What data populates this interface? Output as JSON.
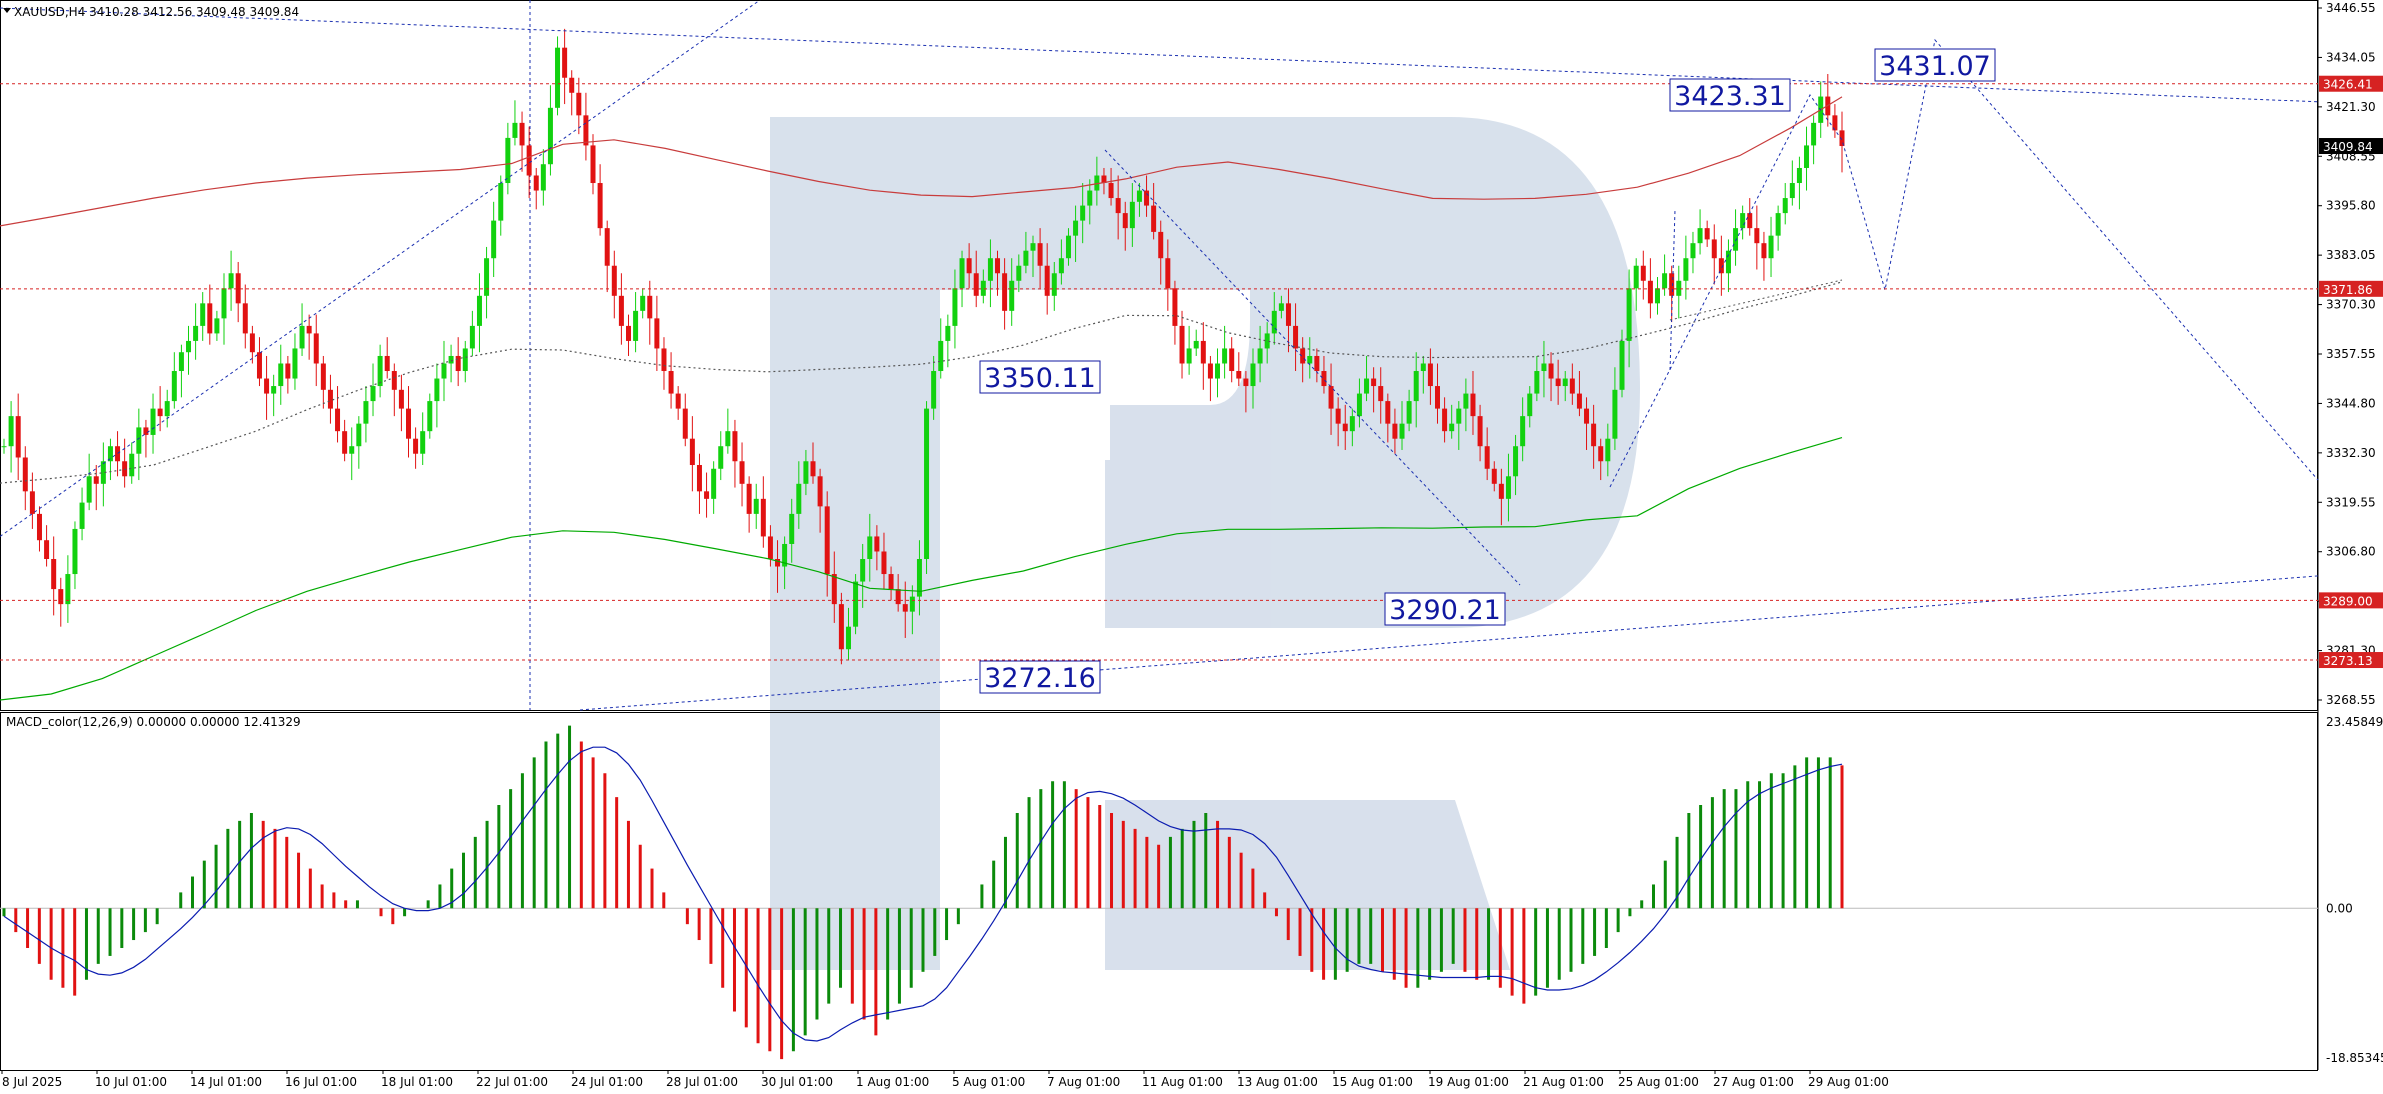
{
  "chart_data": [
    {
      "type": "candlestick",
      "panel": "price",
      "title": "XAUUSD,H4",
      "ohlc_header": [
        "3410.28",
        "3412.56",
        "3409.48",
        "3409.84"
      ],
      "ylim": [
        3262.5,
        3446.55
      ],
      "y_ticks": [
        "3446.55",
        "3434.05",
        "3421.30",
        "3408.55",
        "3395.80",
        "3383.05",
        "3370.30",
        "3357.55",
        "3344.80",
        "3332.30",
        "3319.55",
        "3306.80",
        "3294.05",
        "3281.30",
        "3268.55"
      ],
      "x_ticks": [
        "8 Jul 2025",
        "10 Jul 01:00",
        "14 Jul 01:00",
        "16 Jul 01:00",
        "18 Jul 01:00",
        "22 Jul 01:00",
        "24 Jul 01:00",
        "28 Jul 01:00",
        "30 Jul 01:00",
        "1 Aug 01:00",
        "5 Aug 01:00",
        "7 Aug 01:00",
        "11 Aug 01:00",
        "13 Aug 01:00",
        "15 Aug 01:00",
        "19 Aug 01:00",
        "21 Aug 01:00",
        "25 Aug 01:00",
        "27 Aug 01:00",
        "29 Aug 01:00"
      ],
      "bars_close": [
        3330,
        3338,
        3327,
        3318,
        3312,
        3305,
        3300,
        3292,
        3288,
        3296,
        3308,
        3315,
        3322,
        3320,
        3326,
        3330,
        3326,
        3322,
        3328,
        3335,
        3333,
        3340,
        3338,
        3342,
        3350,
        3355,
        3358,
        3362,
        3368,
        3360,
        3364,
        3372,
        3376,
        3368,
        3360,
        3355,
        3348,
        3344,
        3346,
        3352,
        3348,
        3356,
        3362,
        3360,
        3352,
        3345,
        3340,
        3334,
        3328,
        3330,
        3336,
        3342,
        3346,
        3354,
        3350,
        3345,
        3340,
        3332,
        3328,
        3334,
        3342,
        3348,
        3352,
        3354,
        3350,
        3356,
        3362,
        3370,
        3380,
        3390,
        3400,
        3412,
        3416,
        3410,
        3402,
        3398,
        3405,
        3420,
        3436,
        3428,
        3424,
        3418,
        3410,
        3400,
        3388,
        3378,
        3370,
        3362,
        3358,
        3366,
        3370,
        3364,
        3356,
        3350,
        3344,
        3340,
        3332,
        3325,
        3318,
        3316,
        3324,
        3330,
        3334,
        3326,
        3320,
        3312,
        3316,
        3306,
        3300,
        3298,
        3304,
        3312,
        3320,
        3326,
        3322,
        3314,
        3296,
        3288,
        3276,
        3282,
        3294,
        3300,
        3306,
        3302,
        3296,
        3292,
        3288,
        3286,
        3290,
        3300,
        3340,
        3350,
        3358,
        3362,
        3372,
        3380,
        3376,
        3370,
        3374,
        3380,
        3376,
        3366,
        3374,
        3378,
        3382,
        3384,
        3378,
        3370,
        3376,
        3380,
        3386,
        3390,
        3394,
        3398,
        3402,
        3400,
        3396,
        3392,
        3388,
        3395,
        3398,
        3394,
        3387,
        3380,
        3372,
        3362,
        3352,
        3356,
        3358,
        3352,
        3348,
        3352,
        3356,
        3350,
        3348,
        3346,
        3352,
        3356,
        3360,
        3366,
        3368,
        3362,
        3356,
        3352,
        3354,
        3350,
        3346,
        3340,
        3336,
        3334,
        3338,
        3344,
        3348,
        3346,
        3342,
        3336,
        3332,
        3336,
        3342,
        3350,
        3352,
        3346,
        3340,
        3334,
        3336,
        3340,
        3344,
        3338,
        3330,
        3324,
        3320,
        3316,
        3322,
        3330,
        3338,
        3344,
        3350,
        3352,
        3348,
        3346,
        3348,
        3344,
        3340,
        3336,
        3330,
        3326,
        3332,
        3345,
        3358,
        3372,
        3378,
        3374,
        3368,
        3372,
        3376,
        3370,
        3374,
        3380,
        3384,
        3388,
        3385,
        3380,
        3376,
        3382,
        3388,
        3392,
        3388,
        3384,
        3380,
        3386,
        3392,
        3396,
        3400,
        3404,
        3410,
        3416,
        3423,
        3418,
        3414,
        3409.84
      ],
      "moving_averages": [
        {
          "color": "#c83c3c",
          "values": [
            3388.6,
            3391.0,
            3393.5,
            3396.0,
            3398.2,
            3400.0,
            3401.3,
            3402.2,
            3402.9,
            3403.6,
            3405.2,
            3410.3,
            3411.5,
            3409.2,
            3406.2,
            3403.2,
            3400.4,
            3398.1,
            3396.8,
            3396.4,
            3397.6,
            3398.8,
            3401.1,
            3404.2,
            3405.6,
            3403.6,
            3401.2,
            3398.5,
            3395.9,
            3395.7,
            3395.9,
            3397.0,
            3398.9,
            3402.6,
            3407.3,
            3414.7,
            3422.9
          ]
        },
        {
          "color": "#00aa00",
          "values": [
            3262.5,
            3264.1,
            3268.2,
            3274.2,
            3280.2,
            3286.3,
            3291.4,
            3295.4,
            3299.2,
            3302.5,
            3305.8,
            3307.5,
            3307.1,
            3305.2,
            3302.7,
            3300.1,
            3296.6,
            3292.2,
            3291.4,
            3294.3,
            3296.8,
            3300.6,
            3303.9,
            3306.7,
            3307.9,
            3307.9,
            3308.1,
            3308.3,
            3308.2,
            3308.5,
            3308.6,
            3310.4,
            3311.5,
            3318.7,
            3324.1,
            3328.3,
            3332.3
          ]
        },
        {
          "color": "#555555",
          "dashed": true,
          "values": [
            3320.2,
            3321.4,
            3322.9,
            3325.0,
            3329.5,
            3334.0,
            3339.7,
            3344.9,
            3349.6,
            3353.4,
            3355.8,
            3355.6,
            3353.3,
            3351.4,
            3350.4,
            3349.8,
            3350.4,
            3351.0,
            3351.8,
            3353.8,
            3356.9,
            3361.3,
            3364.8,
            3364.7,
            3360.2,
            3357.3,
            3354.8,
            3353.8,
            3353.6,
            3353.7,
            3353.8,
            3355.9,
            3359.2,
            3362.6,
            3366.5,
            3369.9,
            3373.7
          ]
        }
      ],
      "horizontal_levels": [
        {
          "value": 3426.41,
          "label": "3426.41",
          "color": "#d62222"
        },
        {
          "value": 3409.84,
          "label": "3409.84",
          "color": "#000000"
        },
        {
          "value": 3371.86,
          "label": "3371.86",
          "color": "#d62222"
        },
        {
          "value": 3289.0,
          "label": "3289.00",
          "color": "#d62222"
        },
        {
          "value": 3273.13,
          "label": "3273.13",
          "color": "#d62222"
        }
      ],
      "annotations": [
        "3431.07",
        "3423.31",
        "3350.11",
        "3290.21",
        "3272.16"
      ],
      "forecast_path": [
        3409.84,
        3423.31,
        3371.86,
        3431.07,
        3321.0
      ]
    },
    {
      "type": "histogram",
      "panel": "indicator",
      "title": "MACD_color(12,26,9) 0.00000 0.00000 12.41329",
      "ylim": [
        -18.85345,
        23.45849
      ],
      "y_ticks": [
        "23.45849",
        "0.00",
        "-18.85345"
      ],
      "values": [
        -1,
        -3,
        -5,
        -7,
        -9,
        -10,
        -11,
        -9,
        -7,
        -6,
        -5,
        -4,
        -3,
        -2,
        0,
        2,
        4,
        6,
        8,
        10,
        11,
        12,
        11,
        10,
        9,
        7,
        5,
        3,
        2,
        1,
        1,
        0,
        -1,
        -2,
        -1,
        0,
        1,
        3,
        5,
        7,
        9,
        11,
        13,
        15,
        17,
        19,
        21,
        22,
        23,
        21,
        19,
        17,
        14,
        11,
        8,
        5,
        2,
        0,
        -2,
        -4,
        -7,
        -10,
        -13,
        -15,
        -17,
        -18,
        -19,
        -18,
        -16,
        -14,
        -12,
        -10,
        -12,
        -14,
        -16,
        -14,
        -12,
        -10,
        -8,
        -6,
        -4,
        -2,
        0,
        3,
        6,
        9,
        12,
        14,
        15,
        16,
        16,
        15,
        14,
        13,
        12,
        11,
        10,
        9,
        8,
        9,
        10,
        11,
        12,
        11,
        9,
        7,
        5,
        2,
        -1,
        -4,
        -6,
        -8,
        -9,
        -9,
        -8,
        -7,
        -7,
        -8,
        -9,
        -10,
        -10,
        -9,
        -8,
        -7,
        -8,
        -9,
        -9,
        -10,
        -11,
        -12,
        -11,
        -10,
        -9,
        -8,
        -7,
        -6,
        -5,
        -3,
        -1,
        1,
        3,
        6,
        9,
        12,
        13,
        14,
        15,
        15,
        16,
        16,
        17,
        17,
        18,
        19,
        19,
        19,
        18
      ],
      "signal_color": "#0b1cb0"
    }
  ]
}
